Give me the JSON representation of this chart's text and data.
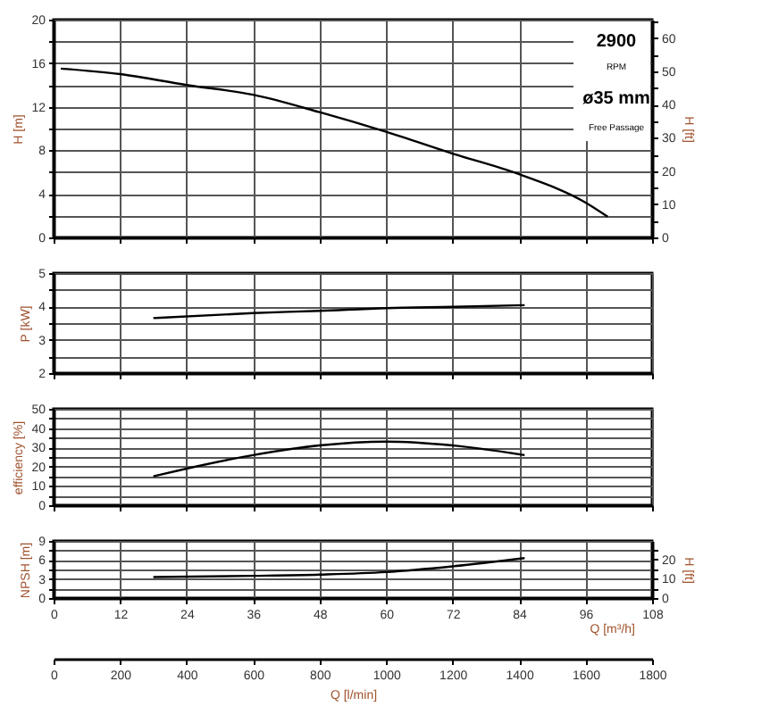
{
  "chart_data": [
    {
      "type": "line",
      "ylabel": "H [m]",
      "y2label": "H [ft]",
      "xlim": [
        0,
        108
      ],
      "xticks": [
        0,
        12,
        24,
        36,
        48,
        60,
        72,
        84,
        96,
        108
      ],
      "ylim": [
        0,
        20
      ],
      "yticks": [
        0,
        {
          "value": 2,
          "label": null
        },
        4,
        {
          "value": 6,
          "label": null
        },
        8,
        {
          "value": 10,
          "label": null
        },
        12,
        {
          "value": 14,
          "label": null
        },
        16,
        {
          "value": 18,
          "label": null
        },
        20
      ],
      "y2lim": [
        0,
        65.6
      ],
      "y2ticks": [
        0,
        {
          "value": 5,
          "label": null
        },
        10,
        {
          "value": 15,
          "label": null
        },
        20,
        {
          "value": 25,
          "label": null
        },
        30,
        {
          "value": 35,
          "label": null
        },
        40,
        {
          "value": 45,
          "label": null
        },
        50,
        {
          "value": 55,
          "label": null
        },
        60,
        {
          "value": 65,
          "label": null
        }
      ],
      "grid": true,
      "tick_labels": "y",
      "annotations": [
        "2900",
        "RPM",
        "ø35 mm",
        "Free Passage"
      ],
      "series": [
        {
          "color": "#000000",
          "x": [
            1.3,
            12,
            24,
            36,
            48,
            60,
            72,
            84,
            96,
            100
          ],
          "values": [
            15.5,
            15.0,
            14.0,
            13.1,
            11.5,
            9.7,
            7.7,
            5.8,
            3.2,
            1.9
          ]
        }
      ]
    },
    {
      "type": "line",
      "ylabel": "P [kW]",
      "xlim": [
        0,
        108
      ],
      "xticks": [
        0,
        12,
        24,
        36,
        48,
        60,
        72,
        84,
        96,
        108
      ],
      "ylim": [
        2,
        5
      ],
      "yticks": [
        2,
        {
          "value": 2.5,
          "label": null
        },
        3,
        {
          "value": 3.5,
          "label": null
        },
        4,
        {
          "value": 4.5,
          "label": null
        },
        5
      ],
      "grid": true,
      "tick_labels": "y",
      "series": [
        {
          "color": "#000000",
          "x": [
            18,
            36,
            48,
            60,
            72,
            85
          ],
          "values": [
            3.65,
            3.8,
            3.87,
            3.95,
            3.99,
            4.04
          ]
        }
      ]
    },
    {
      "type": "line",
      "ylabel": "efficiency [%]",
      "xlim": [
        0,
        108
      ],
      "xticks": [
        0,
        12,
        24,
        36,
        48,
        60,
        72,
        84,
        96,
        108
      ],
      "ylim": [
        0,
        50
      ],
      "yticks": [
        0,
        {
          "value": 5,
          "label": null
        },
        10,
        {
          "value": 15,
          "label": null
        },
        20,
        {
          "value": 25,
          "label": null
        },
        30,
        {
          "value": 35,
          "label": null
        },
        40,
        {
          "value": 45,
          "label": null
        },
        50
      ],
      "grid": true,
      "tick_labels": "y",
      "series": [
        {
          "color": "#000000",
          "x": [
            18,
            24,
            36,
            48,
            60,
            72,
            85
          ],
          "values": [
            15,
            19,
            26,
            31,
            33,
            31,
            26
          ]
        }
      ]
    },
    {
      "type": "line",
      "ylabel": "NPSH [m]",
      "y2label": "H [ft]",
      "xlabel": "Q [m³/h]",
      "x2label": "Q [l/min]",
      "xlim": [
        0,
        108
      ],
      "xticks": [
        0,
        12,
        24,
        36,
        48,
        60,
        72,
        84,
        96,
        108
      ],
      "x2lim": [
        0,
        1800
      ],
      "x2ticks": [
        0,
        200,
        400,
        600,
        800,
        1000,
        1200,
        1400,
        1600,
        1800
      ],
      "ylim": [
        0,
        9
      ],
      "yticks": [
        0,
        {
          "value": 1.5,
          "label": null
        },
        3,
        {
          "value": 4.5,
          "label": null
        },
        6,
        {
          "value": 7.5,
          "label": null
        },
        9
      ],
      "y2lim": [
        0,
        29.5
      ],
      "y2ticks": [
        0,
        {
          "value": 5,
          "label": null
        },
        10,
        {
          "value": 15,
          "label": null
        },
        20,
        {
          "value": 25,
          "label": null
        }
      ],
      "grid": true,
      "series": [
        {
          "color": "#000000",
          "x": [
            18,
            36,
            48,
            60,
            72,
            85
          ],
          "values": [
            3.3,
            3.5,
            3.7,
            4.1,
            5.0,
            6.3
          ]
        }
      ]
    }
  ]
}
